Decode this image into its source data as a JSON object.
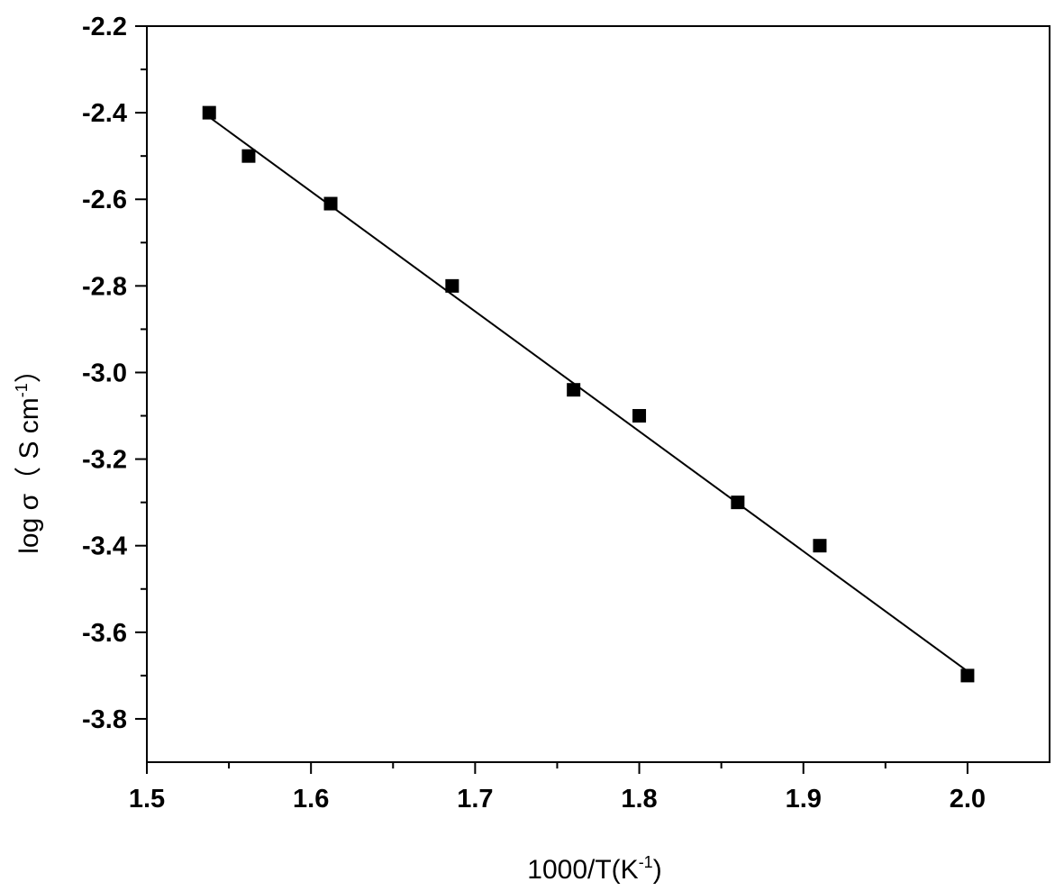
{
  "chart_data": {
    "type": "scatter",
    "title": "",
    "xlabel": "1000/T(K",
    "xlabel_sup": "-1",
    "xlabel_suffix": ")",
    "ylabel": "log σ（ S cm",
    "ylabel_sup": "-1",
    "ylabel_suffix": "）",
    "xlim": [
      1.5,
      2.05
    ],
    "ylim": [
      -3.9,
      -2.2
    ],
    "xticks": [
      1.5,
      1.6,
      1.7,
      1.8,
      1.9,
      2.0
    ],
    "xtick_labels": [
      "1.5",
      "1.6",
      "1.7",
      "1.8",
      "1.9",
      "2.0"
    ],
    "xticks_minor": [
      1.55,
      1.65,
      1.75,
      1.85,
      1.95
    ],
    "yticks": [
      -2.2,
      -2.4,
      -2.6,
      -2.8,
      -3.0,
      -3.2,
      -3.4,
      -3.6,
      -3.8
    ],
    "ytick_labels": [
      "-2.2",
      "-2.4",
      "-2.6",
      "-2.8",
      "-3.0",
      "-3.2",
      "-3.4",
      "-3.6",
      "-3.8"
    ],
    "yticks_minor": [
      -2.3,
      -2.5,
      -2.7,
      -2.9,
      -3.1,
      -3.3,
      -3.5,
      -3.7
    ],
    "grid": false,
    "marker": "square",
    "series": [
      {
        "x": [
          1.538,
          1.562,
          1.612,
          1.686,
          1.76,
          1.8,
          1.86,
          1.91,
          2.0
        ],
        "y": [
          -2.4,
          -2.5,
          -2.61,
          -2.8,
          -3.04,
          -3.1,
          -3.3,
          -3.4,
          -3.7
        ]
      }
    ],
    "fit_line": {
      "x": [
        1.538,
        2.0
      ],
      "y": [
        -2.41,
        -3.69
      ]
    }
  }
}
